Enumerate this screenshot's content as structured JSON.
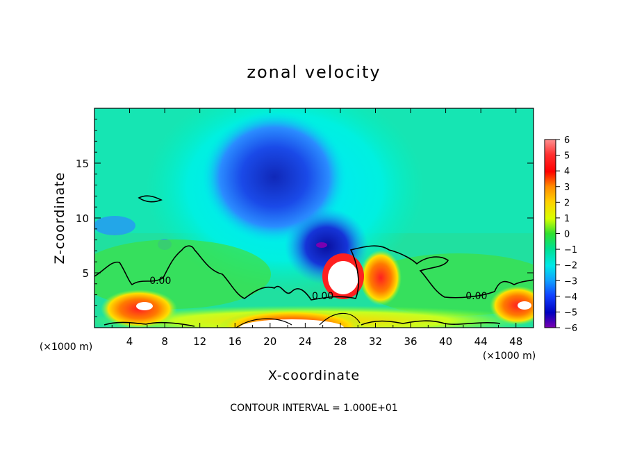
{
  "chart_data": {
    "type": "heatmap",
    "title": "zonal velocity",
    "xlabel": "X-coordinate",
    "ylabel": "Z-coordinate",
    "x_unit_label": "(×1000 m)",
    "x_unit_label_right": "(×1000 m)",
    "xlim": [
      0,
      50
    ],
    "ylim": [
      0,
      20
    ],
    "x_ticks": [
      4,
      8,
      12,
      16,
      20,
      24,
      28,
      32,
      36,
      40,
      44,
      48
    ],
    "y_ticks": [
      5,
      10,
      15
    ],
    "colorbar": {
      "min": -6,
      "max": 6,
      "labels": [
        "6",
        "5",
        "4",
        "3",
        "2",
        "1",
        "0",
        "−1",
        "−2",
        "−3",
        "−4",
        "−5",
        "−6"
      ]
    },
    "contour_labels": [
      {
        "text": "0.00",
        "x": 7.5,
        "z": 4.0
      },
      {
        "text": "0.00",
        "x": 26.0,
        "z": 2.6
      },
      {
        "text": "0.00",
        "x": 43.5,
        "z": 2.6
      }
    ],
    "features": [
      {
        "name": "upper negative jet core",
        "x": 20,
        "z": 13,
        "value": -5
      },
      {
        "name": "lower negative core",
        "x": 27,
        "z": 8,
        "value": -6
      },
      {
        "name": "positive core near surface",
        "x": 28,
        "z": 4.5,
        "value": 7
      },
      {
        "name": "surface positive band",
        "x": 20,
        "z": 0.5,
        "value": 7
      },
      {
        "name": "positive patch",
        "x": 33,
        "z": 4.5,
        "value": 4
      },
      {
        "name": "positive patch left",
        "x": 5,
        "z": 2,
        "value": 5
      },
      {
        "name": "positive patch right",
        "x": 49,
        "z": 2,
        "value": 5
      }
    ],
    "contour_interval_text": "CONTOUR INTERVAL = 1.000E+01"
  }
}
